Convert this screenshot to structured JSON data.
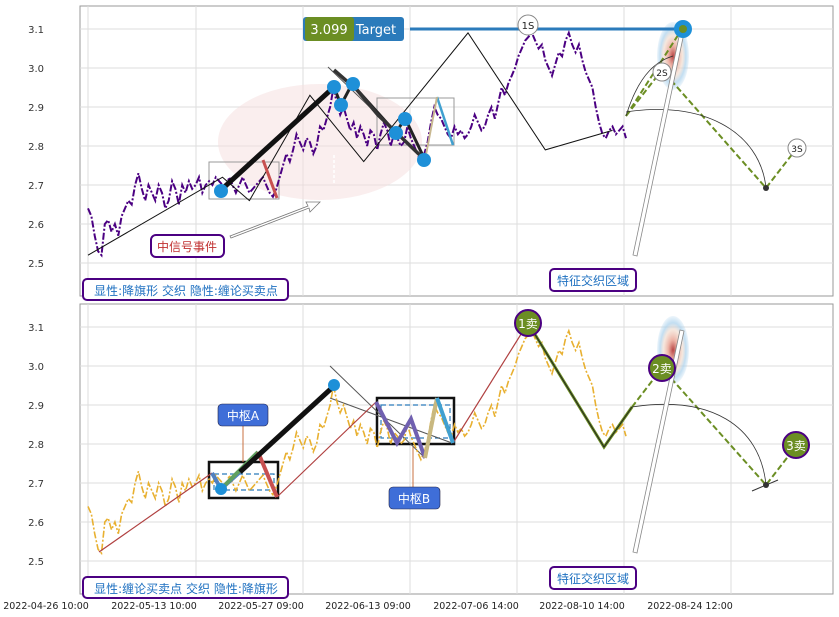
{
  "chart_data": [
    {
      "type": "line",
      "panel": "top",
      "ylim": [
        2.45,
        3.15
      ],
      "yticks": [
        "2.5",
        "2.6",
        "2.7",
        "2.8",
        "2.9",
        "3.0",
        "3.1"
      ],
      "grid": true,
      "price_color": "#4b0082",
      "series": [
        {
          "values": [
            2.64,
            2.62,
            2.57,
            2.53,
            2.52,
            2.6,
            2.61,
            2.58,
            2.6,
            2.57,
            2.62,
            2.64,
            2.66,
            2.65,
            2.7,
            2.73,
            2.69,
            2.66,
            2.7,
            2.68,
            2.66,
            2.7,
            2.68,
            2.64,
            2.66,
            2.71,
            2.69,
            2.65,
            2.7,
            2.68,
            2.71,
            2.69,
            2.7,
            2.72,
            2.68,
            2.7,
            2.71,
            2.7,
            2.72,
            2.71,
            2.7,
            2.69,
            2.72,
            2.7,
            2.68,
            2.7,
            2.72,
            2.7,
            2.68,
            2.69,
            2.7,
            2.71,
            2.72,
            2.7,
            2.68,
            2.67,
            2.69,
            2.72,
            2.75,
            2.78,
            2.76,
            2.79,
            2.83,
            2.81,
            2.79,
            2.82,
            2.81,
            2.78,
            2.8,
            2.85,
            2.84,
            2.87,
            2.9,
            2.95,
            2.91,
            2.88,
            2.9,
            2.87,
            2.84,
            2.86,
            2.82,
            2.85,
            2.83,
            2.8,
            2.84,
            2.83,
            2.79,
            2.83,
            2.86,
            2.84,
            2.8,
            2.83,
            2.82,
            2.8,
            2.81,
            2.85,
            2.82,
            2.8,
            2.78,
            2.76,
            2.78,
            2.81,
            2.86,
            2.9,
            2.88,
            2.87,
            2.85,
            2.83,
            2.82,
            2.85,
            2.83,
            2.84,
            2.82,
            2.83,
            2.85,
            2.88,
            2.86,
            2.84,
            2.85,
            2.88,
            2.9,
            2.87,
            2.91,
            2.95,
            2.93,
            2.96,
            2.98,
            3.0,
            3.03,
            3.05,
            3.07,
            3.08,
            3.09,
            3.07,
            3.05,
            3.06,
            3.02,
            3.0,
            2.98,
            3.01,
            3.04,
            3.03,
            3.07,
            3.09,
            3.06,
            3.04,
            3.06,
            3.02,
            2.99,
            2.97,
            2.95,
            2.9,
            2.86,
            2.83,
            2.82,
            2.84,
            2.85,
            2.83,
            2.84,
            2.85,
            2.82
          ]
        }
      ],
      "x_index": {
        "first": 0,
        "last": 156
      },
      "bi_points": [
        [
          0,
          2.52
        ],
        [
          40,
          2.72
        ],
        [
          48,
          2.66
        ],
        [
          66,
          2.93
        ],
        [
          82,
          2.76
        ],
        [
          113,
          3.09
        ],
        [
          136,
          2.79
        ],
        [
          156,
          2.84
        ]
      ],
      "markers": [
        "1S",
        "2S",
        "3S"
      ],
      "target": {
        "value": "3.099",
        "label": "Target"
      },
      "annotations": [
        "中信号事件",
        "特征交织区域"
      ],
      "footer": "显性:降旗形 交织 隐性:缠论买卖点"
    },
    {
      "type": "line",
      "panel": "bottom",
      "ylim": [
        2.45,
        3.15
      ],
      "yticks": [
        "2.5",
        "2.6",
        "2.7",
        "2.8",
        "2.9",
        "3.0",
        "3.1"
      ],
      "grid": true,
      "price_color": "#e8b030",
      "series": [
        {
          "values": [
            2.64,
            2.62,
            2.57,
            2.53,
            2.52,
            2.6,
            2.61,
            2.58,
            2.6,
            2.57,
            2.62,
            2.64,
            2.66,
            2.65,
            2.7,
            2.73,
            2.69,
            2.66,
            2.7,
            2.68,
            2.66,
            2.7,
            2.68,
            2.64,
            2.66,
            2.71,
            2.69,
            2.65,
            2.7,
            2.68,
            2.71,
            2.69,
            2.7,
            2.72,
            2.68,
            2.7,
            2.71,
            2.7,
            2.72,
            2.71,
            2.7,
            2.69,
            2.72,
            2.7,
            2.68,
            2.7,
            2.72,
            2.7,
            2.68,
            2.69,
            2.7,
            2.71,
            2.72,
            2.7,
            2.68,
            2.67,
            2.69,
            2.72,
            2.75,
            2.78,
            2.76,
            2.79,
            2.83,
            2.81,
            2.79,
            2.82,
            2.81,
            2.78,
            2.8,
            2.85,
            2.84,
            2.87,
            2.9,
            2.95,
            2.91,
            2.88,
            2.9,
            2.87,
            2.84,
            2.86,
            2.82,
            2.85,
            2.83,
            2.8,
            2.84,
            2.83,
            2.79,
            2.83,
            2.86,
            2.84,
            2.8,
            2.83,
            2.82,
            2.8,
            2.81,
            2.85,
            2.82,
            2.8,
            2.78,
            2.76,
            2.78,
            2.81,
            2.86,
            2.9,
            2.88,
            2.87,
            2.85,
            2.83,
            2.82,
            2.85,
            2.83,
            2.84,
            2.82,
            2.83,
            2.85,
            2.88,
            2.86,
            2.84,
            2.85,
            2.88,
            2.9,
            2.87,
            2.91,
            2.95,
            2.93,
            2.96,
            2.98,
            3.0,
            3.03,
            3.05,
            3.07,
            3.08,
            3.09,
            3.07,
            3.05,
            3.06,
            3.02,
            3.0,
            2.98,
            3.01,
            3.04,
            3.03,
            3.07,
            3.09,
            3.06,
            3.04,
            3.06,
            3.02,
            2.99,
            2.97,
            2.95,
            2.9,
            2.86,
            2.83,
            2.82,
            2.84,
            2.85,
            2.83,
            2.84,
            2.85,
            2.82
          ]
        }
      ],
      "sell_points": [
        "1卖",
        "2卖",
        "3卖"
      ],
      "zhongshu": [
        "中枢A",
        "中枢B"
      ],
      "annotations": [
        "特征交织区域"
      ],
      "footer": "显性:缠论买卖点 交织 隐性:降旗形"
    }
  ],
  "x_axis_labels": [
    "2022-04-26 10:00",
    "2022-05-13 10:00",
    "2022-05-27 09:00",
    "2022-06-13 09:00",
    "2022-07-06 14:00",
    "2022-08-10 14:00",
    "2022-08-24 12:00"
  ]
}
